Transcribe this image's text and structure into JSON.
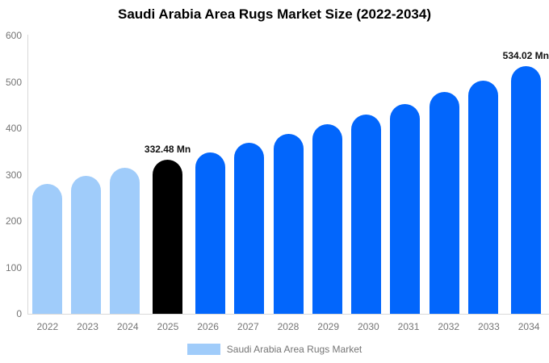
{
  "title": "Saudi Arabia Area Rugs Market Size (2022-2034)",
  "colors": {
    "historical_bar": "#A0CCFA",
    "base_year_bar": "#000000",
    "forecast_bar": "#0266FC",
    "axis_text": "#757575",
    "axis_line": "#D9D9D9",
    "data_label_text": "#111111",
    "title_text": "#000000"
  },
  "legend": {
    "label": "Saudi Arabia Area Rugs Market",
    "swatch_color": "#A0CCFA"
  },
  "chart_data": {
    "type": "bar",
    "title": "Saudi Arabia Area Rugs Market Size (2022-2034)",
    "categories": [
      "2022",
      "2023",
      "2024",
      "2025",
      "2026",
      "2027",
      "2028",
      "2029",
      "2030",
      "2031",
      "2032",
      "2033",
      "2034"
    ],
    "values": [
      280,
      298,
      315,
      332.48,
      348,
      368,
      388,
      409,
      430,
      453,
      478,
      503,
      534.02
    ],
    "bar_colors": [
      "#A0CCFA",
      "#A0CCFA",
      "#A0CCFA",
      "#000000",
      "#0266FC",
      "#0266FC",
      "#0266FC",
      "#0266FC",
      "#0266FC",
      "#0266FC",
      "#0266FC",
      "#0266FC",
      "#0266FC"
    ],
    "data_labels": [
      "",
      "",
      "",
      "332.48 Mn",
      "",
      "",
      "",
      "",
      "",
      "",
      "",
      "",
      "534.02 Mn"
    ],
    "xlabel": "",
    "ylabel": "",
    "ylim": [
      0,
      600
    ],
    "yticks": [
      0,
      100,
      200,
      300,
      400,
      500,
      600
    ],
    "grid": false,
    "legend_position": "bottom",
    "legend_entries": [
      "Saudi Arabia Area Rugs Market"
    ]
  }
}
